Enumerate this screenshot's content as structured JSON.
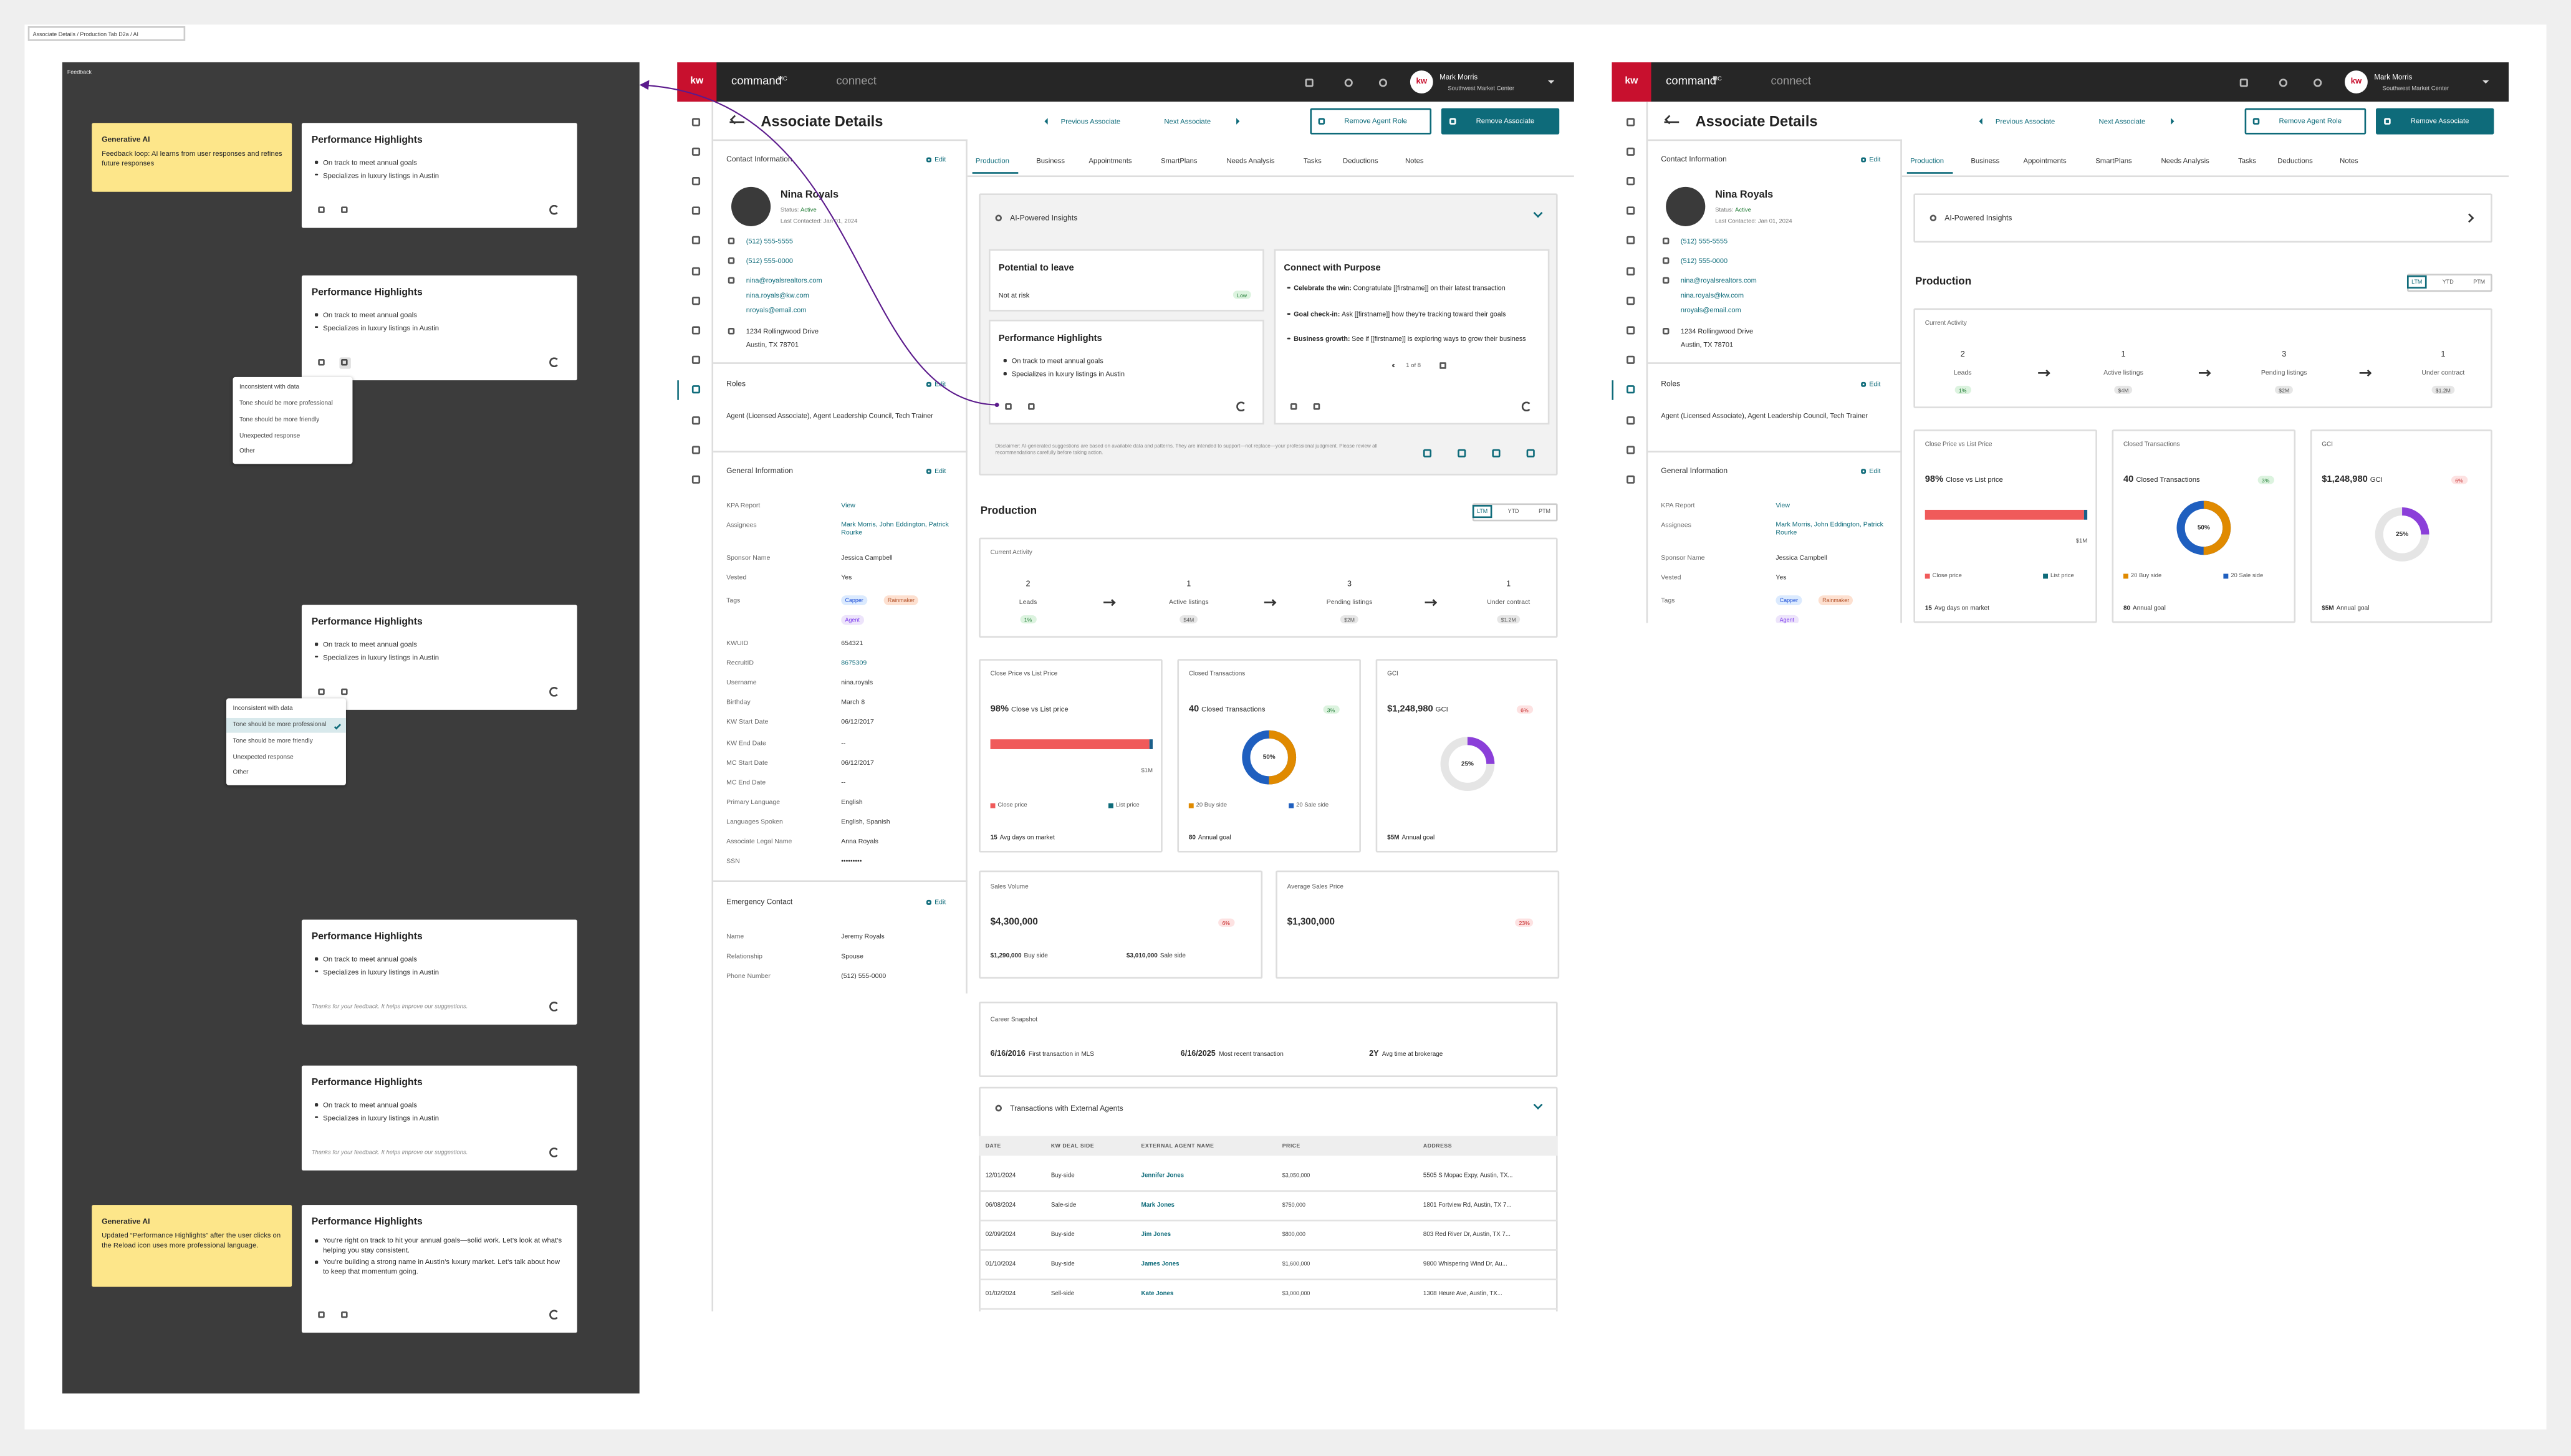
{
  "frame_label": "Associate Details / Production Tab D2a / AI",
  "feedback": {
    "label": "Feedback",
    "notes": [
      {
        "title": "Generative AI",
        "text": "Feedback loop: AI learns from user responses and refines future responses"
      },
      {
        "title": "Generative AI",
        "text": "Updated “Performance Highlights” after the user clicks on the Reload icon uses more professional language."
      }
    ],
    "cards": [
      {
        "title": "Performance Highlights",
        "bullets": [
          "On track to meet annual goals",
          "Specializes in luxury listings in Austin"
        ]
      },
      {
        "title": "Performance Highlights",
        "bullets": [
          "On track to meet annual goals",
          "Specializes in luxury listings in Austin"
        ]
      },
      {
        "title": "Performance Highlights",
        "bullets": [
          "On track to meet annual goals",
          "Specializes in luxury listings in Austin"
        ]
      },
      {
        "title": "Performance Highlights",
        "bullets": [
          "On track to meet annual goals",
          "Specializes in luxury listings in Austin"
        ],
        "footer": "Thanks for your feedback. It helps improve our suggestions."
      },
      {
        "title": "Performance Highlights",
        "bullets": [
          "On track to meet annual goals",
          "Specializes in luxury listings in Austin"
        ],
        "footer": "Thanks for your feedback. It helps improve our suggestions."
      },
      {
        "title": "Performance Highlights",
        "bullets": [
          "You’re right on track to hit your annual goals—solid work. Let’s look at what’s helping you stay consistent.",
          "You’re building a strong name in Austin’s luxury market. Let’s talk about how to keep that momentum going."
        ]
      }
    ],
    "menus": [
      {
        "options": [
          "Inconsistent with data",
          "Tone should be more professional",
          "Tone should be more friendly",
          "Unexpected response",
          "Other"
        ]
      },
      {
        "options": [
          "Inconsistent with data",
          "Tone should be more professional",
          "Tone should be more friendly",
          "Unexpected response",
          "Other"
        ]
      }
    ]
  },
  "app": {
    "logo": "kw",
    "brand": "command",
    "brand_sup": "MC",
    "brand_connect": "connect",
    "user_name": "Mark Morris",
    "user_org": "Southwest Market Center",
    "page_title": "Associate Details",
    "prev": "Previous Associate",
    "next": "Next Associate",
    "btn_remove_role": "Remove Agent Role",
    "btn_remove": "Remove Associate",
    "contact": {
      "heading": "Contact Information",
      "edit": "Edit",
      "name": "Nina Royals",
      "status_label": "Status:",
      "status": "Active",
      "last_contacted": "Last Contacted: Jan 01, 2024",
      "phones": [
        "(512) 555-5555",
        "(512) 555-0000"
      ],
      "emails": [
        "nina@royalsrealtors.com",
        "nina.royals@kw.com",
        "nroyals@email.com"
      ],
      "address": [
        "1234 Rollingwood Drive",
        "Austin, TX 78701"
      ]
    },
    "roles": {
      "heading": "Roles",
      "edit": "Edit",
      "text": "Agent (Licensed Associate), Agent Leadership Council, Tech Trainer"
    },
    "general": {
      "heading": "General Information",
      "edit": "Edit",
      "rows_top": [
        [
          "KPA Report",
          "View"
        ],
        [
          "Assignees",
          "Mark Morris, John Eddington, Patrick Rourke"
        ],
        [
          "Sponsor Name",
          "Jessica Campbell"
        ],
        [
          "Vested",
          "Yes"
        ]
      ],
      "tags_label": "Tags",
      "tags": [
        "Capper",
        "Rainmaker",
        "Agent"
      ],
      "rows_bottom": [
        [
          "KWUID",
          "654321"
        ],
        [
          "RecruitID",
          "8675309"
        ],
        [
          "Username",
          "nina.royals"
        ],
        [
          "Birthday",
          "March 8"
        ],
        [
          "KW Start Date",
          "06/12/2017"
        ],
        [
          "KW End Date",
          "--"
        ],
        [
          "MC Start Date",
          "06/12/2017"
        ],
        [
          "MC End Date",
          "--"
        ],
        [
          "Primary Language",
          "English"
        ],
        [
          "Languages Spoken",
          "English, Spanish"
        ],
        [
          "Associate Legal Name",
          "Anna Royals"
        ],
        [
          "SSN",
          "•••••••••"
        ]
      ]
    },
    "emergency": {
      "heading": "Emergency Contact",
      "edit": "Edit",
      "rows": [
        [
          "Name",
          "Jeremy Royals"
        ],
        [
          "Relationship",
          "Spouse"
        ],
        [
          "Phone Number",
          "(512) 555-0000"
        ]
      ]
    },
    "tabs": [
      "Production",
      "Business",
      "Appointments",
      "SmartPlans",
      "Needs Analysis",
      "Tasks",
      "Deductions",
      "Notes"
    ],
    "insights": {
      "heading": "AI-Powered Insights",
      "cards": [
        {
          "title": "Potential to leave",
          "text": "Not at risk",
          "badge": "Low"
        },
        {
          "title": "Performance Highlights",
          "bullets": [
            "On track to meet annual goals",
            "Specializes in luxury listings in Austin"
          ]
        },
        {
          "title": "Connect with Purpose",
          "bullets": [
            {
              "lead": "Celebrate the win:",
              "text": "Congratulate [[firstname]] on their latest transaction"
            },
            {
              "lead": "Goal check-in:",
              "text": "Ask [[firstname]] how they're tracking toward their goals"
            },
            {
              "lead": "Business growth:",
              "text": "See if [[firstname]] is exploring ways to grow their business"
            }
          ],
          "pager": "1 of 8"
        }
      ],
      "disclaimer": "Disclaimer: AI-generated suggestions are based on available data and patterns. They are intended to support—not replace—your professional judgment. Please review all recommendations carefully before taking action."
    },
    "production": {
      "heading": "Production",
      "periods": [
        "LTM",
        "YTD",
        "PTM"
      ],
      "activity_heading": "Current Activity",
      "activity": [
        {
          "value": "2",
          "label": "Leads",
          "badge": "1%"
        },
        {
          "value": "1",
          "label": "Active listings",
          "badge": "$4M"
        },
        {
          "value": "3",
          "label": "Pending listings",
          "badge": "$2M"
        },
        {
          "value": "1",
          "label": "Under contract",
          "badge": "$1.2M"
        }
      ],
      "close": {
        "heading": "Close Price vs List Price",
        "value": "98%",
        "value_text": "Close vs List price",
        "max": "$1M",
        "legend": [
          "Close price",
          "List price"
        ],
        "foot_value": "15",
        "foot_text": "Avg days on market"
      },
      "closed": {
        "heading": "Closed Transactions",
        "value": "40",
        "value_text": "Closed Transactions",
        "badge": "3%",
        "donut": "50%",
        "legend": [
          "20 Buy side",
          "20 Sale side"
        ],
        "foot_value": "80",
        "foot_text": "Annual goal"
      },
      "gci": {
        "heading": "GCI",
        "value": "$1,248,980",
        "value_text": "GCI",
        "badge": "6%",
        "donut": "25%",
        "foot_value": "$5M",
        "foot_text": "Annual goal"
      },
      "sales_volume": {
        "heading": "Sales Volume",
        "value": "$4,300,000",
        "badge": "6%",
        "sub": [
          [
            "$1,290,000",
            "Buy side"
          ],
          [
            "$3,010,000",
            "Sale side"
          ]
        ]
      },
      "avg_price": {
        "heading": "Average Sales Price",
        "value": "$1,300,000",
        "badge": "23%"
      },
      "career": {
        "heading": "Career Snapshot",
        "items": [
          [
            "6/16/2016",
            "First transaction in MLS"
          ],
          [
            "6/16/2025",
            "Most recent transaction"
          ],
          [
            "2Y",
            "Avg time at brokerage"
          ]
        ]
      },
      "transactions": {
        "heading": "Transactions with External Agents",
        "columns": [
          "DATE",
          "KW DEAL SIDE",
          "EXTERNAL AGENT NAME",
          "PRICE",
          "ADDRESS"
        ],
        "rows": [
          [
            "12/01/2024",
            "Buy-side",
            "Jennifer Jones",
            "$3,050,000",
            "5505 S Mopac Expy, Austin, TX..."
          ],
          [
            "06/08/2024",
            "Sale-side",
            "Mark Jones",
            "$750,000",
            "1801 Fortview Rd, Austin, TX 7..."
          ],
          [
            "02/09/2024",
            "Buy-side",
            "Jim Jones",
            "$800,000",
            "803 Red River Dr, Austin, TX 7..."
          ],
          [
            "01/10/2024",
            "Buy-side",
            "James Jones",
            "$1,600,000",
            "9800 Whispering Wind Dr, Au..."
          ],
          [
            "01/02/2024",
            "Sell-side",
            "Kate Jones",
            "$3,000,000",
            "1308 Heure Ave, Austin, TX..."
          ]
        ]
      }
    }
  }
}
